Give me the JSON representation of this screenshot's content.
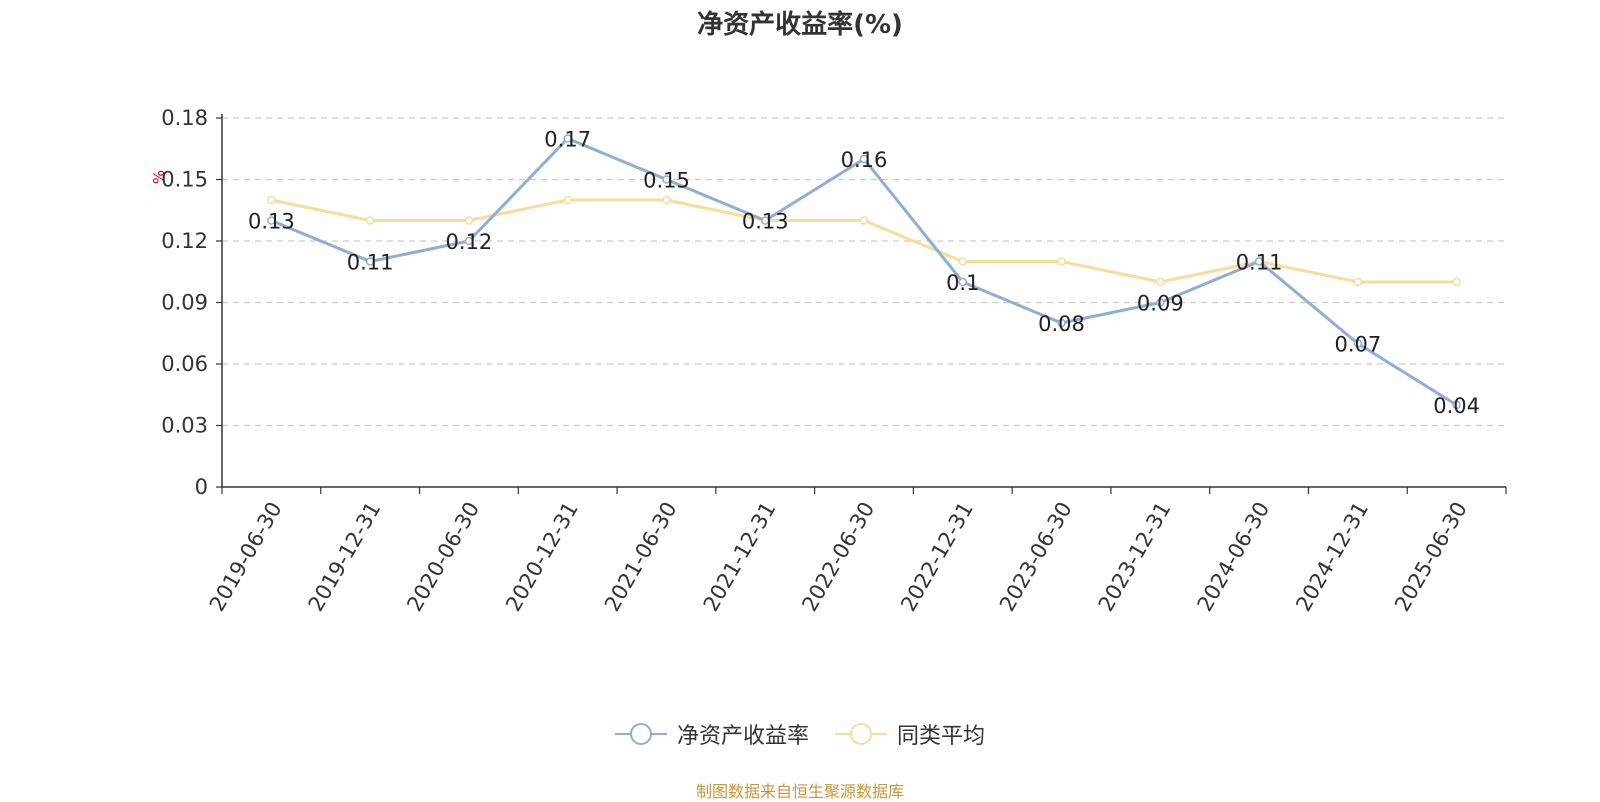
{
  "chart_data": {
    "type": "line",
    "title": "净资产收益率(%)",
    "ylabel": "%",
    "categories": [
      "2019-06-30",
      "2019-12-31",
      "2020-06-30",
      "2020-12-31",
      "2021-06-30",
      "2021-12-31",
      "2022-06-30",
      "2022-12-31",
      "2023-06-30",
      "2023-12-31",
      "2024-06-30",
      "2024-12-31",
      "2025-06-30"
    ],
    "yticks": [
      "0",
      "0.03",
      "0.06",
      "0.09",
      "0.12",
      "0.15",
      "0.18"
    ],
    "ylim": [
      0,
      0.18
    ],
    "grid": true,
    "legend_position": "bottom",
    "series": [
      {
        "name": "净资产收益率",
        "color": "#8eaed8",
        "values": [
          0.13,
          0.11,
          0.12,
          0.17,
          0.15,
          0.13,
          0.16,
          0.1,
          0.08,
          0.09,
          0.11,
          0.07,
          0.04
        ],
        "labels": [
          "0.13",
          "0.11",
          "0.12",
          "0.17",
          "0.15",
          "0.13",
          "0.16",
          "0.1",
          "0.08",
          "0.09",
          "0.11",
          "0.07",
          "0.04"
        ]
      },
      {
        "name": "同类平均",
        "color": "#fbdb9c",
        "values": [
          0.14,
          0.13,
          0.13,
          0.14,
          0.14,
          0.13,
          0.13,
          0.11,
          0.11,
          0.1,
          0.11,
          0.1,
          0.1
        ]
      }
    ]
  },
  "footer": {
    "source": "制图数据来自恒生聚源数据库"
  }
}
